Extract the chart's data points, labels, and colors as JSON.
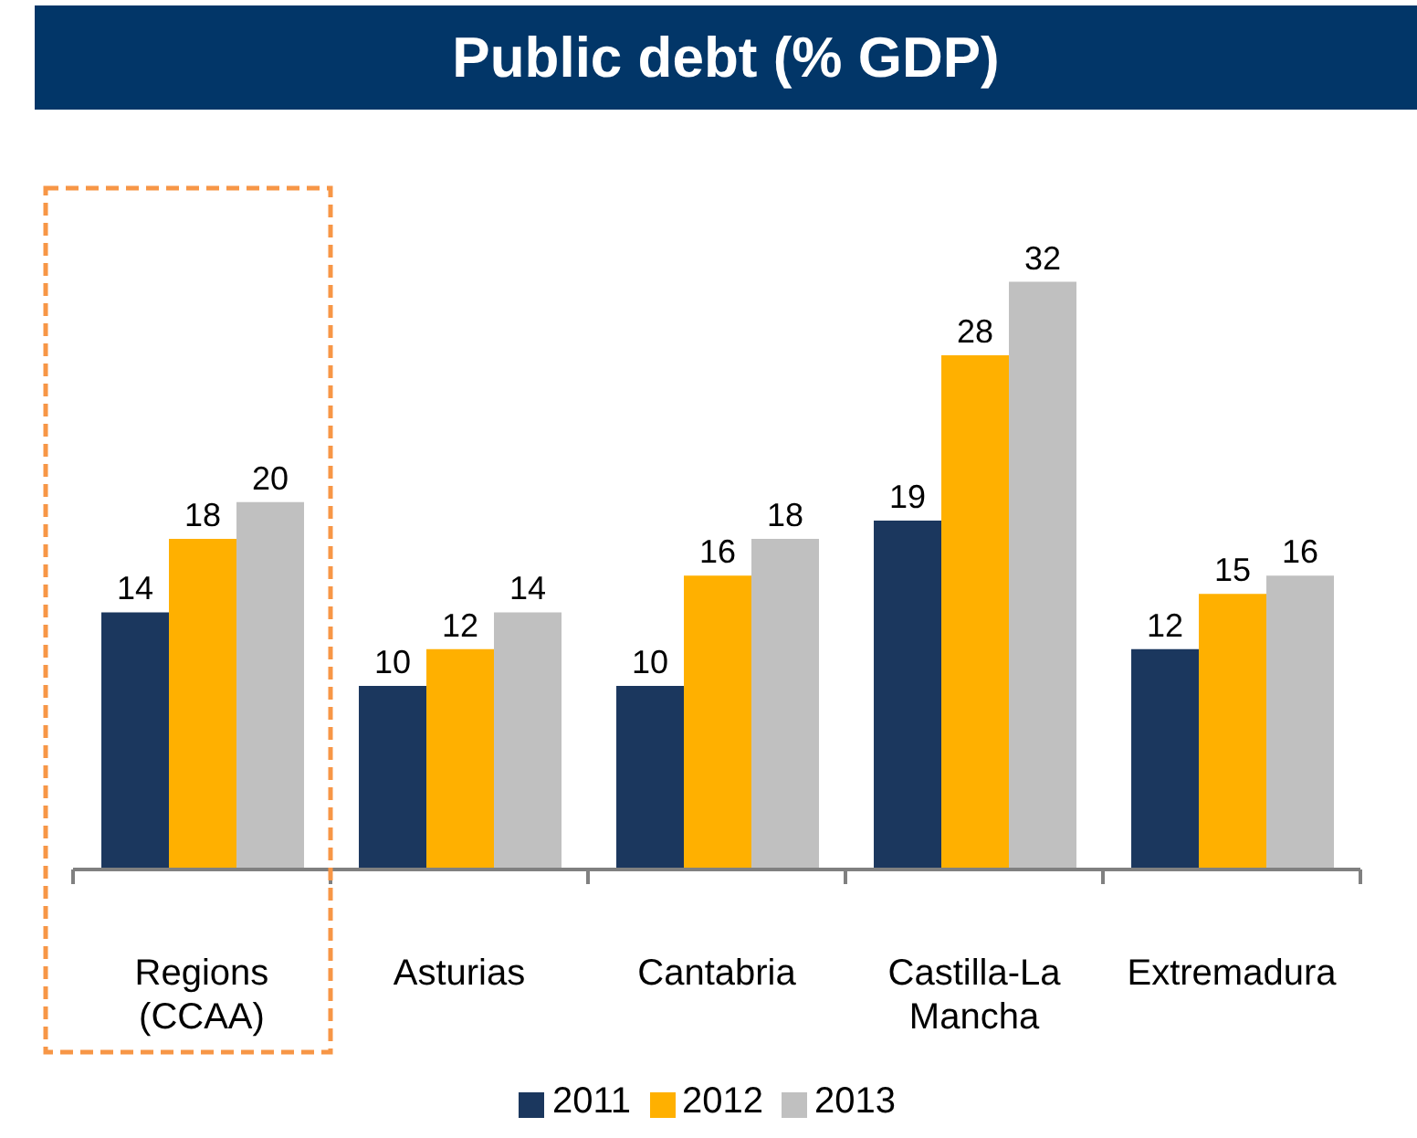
{
  "chart_data": {
    "type": "bar",
    "title": "Public debt (% GDP)",
    "categories": [
      "Regions (CCAA)",
      "Asturias",
      "Cantabria",
      "Castilla-La Mancha",
      "Extremadura"
    ],
    "series": [
      {
        "name": "2011",
        "color": "#1b375e",
        "values": [
          14,
          10,
          10,
          19,
          12
        ]
      },
      {
        "name": "2012",
        "color": "#ffb000",
        "values": [
          18,
          12,
          16,
          28,
          15
        ]
      },
      {
        "name": "2013",
        "color": "#c0c0c0",
        "values": [
          20,
          14,
          18,
          32,
          16
        ]
      }
    ],
    "data_labels": true,
    "legend": "bottom",
    "tick_labels": "x"
  }
}
